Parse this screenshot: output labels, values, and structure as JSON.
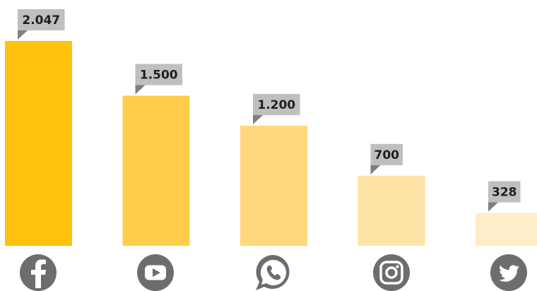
{
  "chart_data": {
    "type": "bar",
    "categories": [
      "facebook-icon",
      "youtube-icon",
      "whatsapp-icon",
      "instagram-icon",
      "twitter-icon"
    ],
    "values": [
      2047,
      1500,
      1200,
      700,
      328
    ],
    "data_labels": [
      "2.047",
      "1.500",
      "1.200",
      "700",
      "328"
    ],
    "colors": [
      "#ffc20e",
      "#ffcd4a",
      "#ffd77c",
      "#ffe3a6",
      "#ffedc9"
    ],
    "label_bg": "#bfbfbf",
    "icon_color": "#6d6d6d",
    "ylim": [
      0,
      2047
    ],
    "grid": false,
    "legend": "none",
    "title": "",
    "xlabel": "",
    "ylabel": ""
  }
}
